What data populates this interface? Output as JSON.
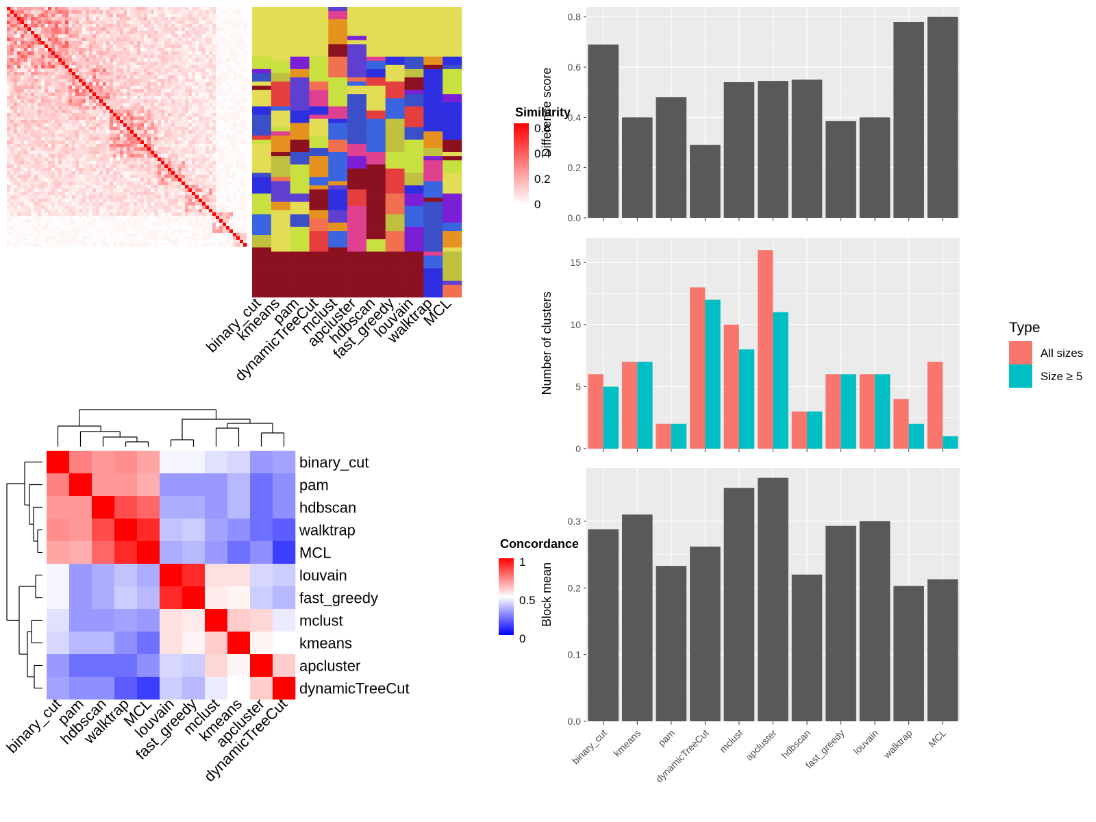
{
  "methods": [
    "binary_cut",
    "kmeans",
    "pam",
    "dynamicTreeCut",
    "mclust",
    "apcluster",
    "hdbscan",
    "fast_greedy",
    "louvain",
    "walktrap",
    "MCL"
  ],
  "colors": {
    "bar_dark": "#595959",
    "panel_bg": "#ebebeb",
    "grid": "#ffffff",
    "all_sizes": "#f8766d",
    "size_ge5": "#00bfc4",
    "sim_high": "#ff0000",
    "sim_low": "#ffffff",
    "conc_high": "#ff0000",
    "conc_mid": "#ffffff",
    "conc_low": "#0000ff",
    "cluster_palette": [
      "#e3dc55",
      "#e53e3e",
      "#3b4fc8",
      "#7b1fd6",
      "#5f3fd0",
      "#e6921e",
      "#8b1020",
      "#3a64e0",
      "#e04090",
      "#c8e040",
      "#2d2fe0",
      "#f07050",
      "#c0c040"
    ]
  },
  "similarity_legend": {
    "title": "Similarity",
    "ticks": [
      "0.6",
      "0.4",
      "0.2",
      "0"
    ]
  },
  "concordance_legend": {
    "title": "Concordance",
    "ticks": [
      "1",
      "0.5",
      "0"
    ]
  },
  "type_legend": {
    "title": "Type",
    "items": [
      "All sizes",
      "Size ≥ 5"
    ]
  },
  "chart_data": [
    {
      "type": "heatmap",
      "description_ref": "similarity matrix of terms (values 0–0.6)",
      "legend_title": "Similarity",
      "range": [
        0,
        0.6
      ]
    },
    {
      "type": "heatmap",
      "columns": [
        "binary_cut",
        "kmeans",
        "pam",
        "dynamicTreeCut",
        "mclust",
        "apcluster",
        "hdbscan",
        "fast_greedy",
        "louvain",
        "walktrap",
        "MCL"
      ]
    },
    {
      "type": "heatmap",
      "legend_title": "Concordance",
      "rows": [
        "binary_cut",
        "pam",
        "hdbscan",
        "walktrap",
        "MCL",
        "louvain",
        "fast_greedy",
        "mclust",
        "kmeans",
        "apcluster",
        "dynamicTreeCut"
      ],
      "columns": [
        "binary_cut",
        "pam",
        "hdbscan",
        "walktrap",
        "MCL",
        "louvain",
        "fast_greedy",
        "mclust",
        "kmeans",
        "apcluster",
        "dynamicTreeCut"
      ],
      "values": [
        [
          1.0,
          0.75,
          0.7,
          0.72,
          0.68,
          0.48,
          0.48,
          0.44,
          0.42,
          0.3,
          0.32
        ],
        [
          0.75,
          1.0,
          0.7,
          0.7,
          0.66,
          0.3,
          0.3,
          0.3,
          0.36,
          0.22,
          0.28
        ],
        [
          0.7,
          0.7,
          1.0,
          0.85,
          0.8,
          0.34,
          0.34,
          0.3,
          0.36,
          0.22,
          0.28
        ],
        [
          0.72,
          0.7,
          0.85,
          1.0,
          0.92,
          0.38,
          0.4,
          0.32,
          0.28,
          0.22,
          0.18
        ],
        [
          0.68,
          0.66,
          0.8,
          0.92,
          1.0,
          0.34,
          0.36,
          0.3,
          0.22,
          0.28,
          0.12
        ],
        [
          0.48,
          0.3,
          0.34,
          0.38,
          0.34,
          1.0,
          0.92,
          0.56,
          0.56,
          0.42,
          0.4
        ],
        [
          0.48,
          0.3,
          0.34,
          0.4,
          0.36,
          0.92,
          1.0,
          0.54,
          0.52,
          0.4,
          0.36
        ],
        [
          0.44,
          0.3,
          0.3,
          0.32,
          0.3,
          0.56,
          0.54,
          1.0,
          0.6,
          0.58,
          0.46
        ],
        [
          0.42,
          0.36,
          0.36,
          0.28,
          0.22,
          0.56,
          0.52,
          0.6,
          1.0,
          0.52,
          0.5
        ],
        [
          0.3,
          0.22,
          0.22,
          0.22,
          0.28,
          0.42,
          0.4,
          0.58,
          0.52,
          1.0,
          0.6
        ],
        [
          0.32,
          0.28,
          0.28,
          0.18,
          0.12,
          0.4,
          0.36,
          0.46,
          0.5,
          0.6,
          1.0
        ]
      ],
      "range": [
        0,
        1
      ]
    },
    {
      "type": "bar",
      "ylabel": "Difference score",
      "categories": [
        "binary_cut",
        "kmeans",
        "pam",
        "dynamicTreeCut",
        "mclust",
        "apcluster",
        "hdbscan",
        "fast_greedy",
        "louvain",
        "walktrap",
        "MCL"
      ],
      "values": [
        0.69,
        0.4,
        0.48,
        0.29,
        0.54,
        0.545,
        0.55,
        0.385,
        0.4,
        0.78,
        0.8
      ],
      "ylim": [
        0,
        0.84
      ],
      "yticks": [
        "0.0",
        "0.2",
        "0.4",
        "0.6",
        "0.8"
      ]
    },
    {
      "type": "bar",
      "ylabel": "Number of clusters",
      "categories": [
        "binary_cut",
        "kmeans",
        "pam",
        "dynamicTreeCut",
        "mclust",
        "apcluster",
        "hdbscan",
        "fast_greedy",
        "louvain",
        "walktrap",
        "MCL"
      ],
      "series": [
        {
          "name": "All sizes",
          "values": [
            6,
            7,
            2,
            13,
            10,
            16,
            3,
            6,
            6,
            4,
            7
          ]
        },
        {
          "name": "Size ≥ 5",
          "values": [
            5,
            7,
            2,
            12,
            8,
            11,
            3,
            6,
            6,
            2,
            1
          ]
        }
      ],
      "ylim": [
        0,
        17
      ],
      "yticks": [
        "0",
        "5",
        "10",
        "15"
      ]
    },
    {
      "type": "bar",
      "ylabel": "Block mean",
      "categories": [
        "binary_cut",
        "kmeans",
        "pam",
        "dynamicTreeCut",
        "mclust",
        "apcluster",
        "hdbscan",
        "fast_greedy",
        "louvain",
        "walktrap",
        "MCL"
      ],
      "values": [
        0.288,
        0.31,
        0.233,
        0.262,
        0.35,
        0.365,
        0.22,
        0.293,
        0.3,
        0.203,
        0.213
      ],
      "ylim": [
        0,
        0.38
      ],
      "yticks": [
        "0.0",
        "0.1",
        "0.2",
        "0.3"
      ]
    }
  ]
}
